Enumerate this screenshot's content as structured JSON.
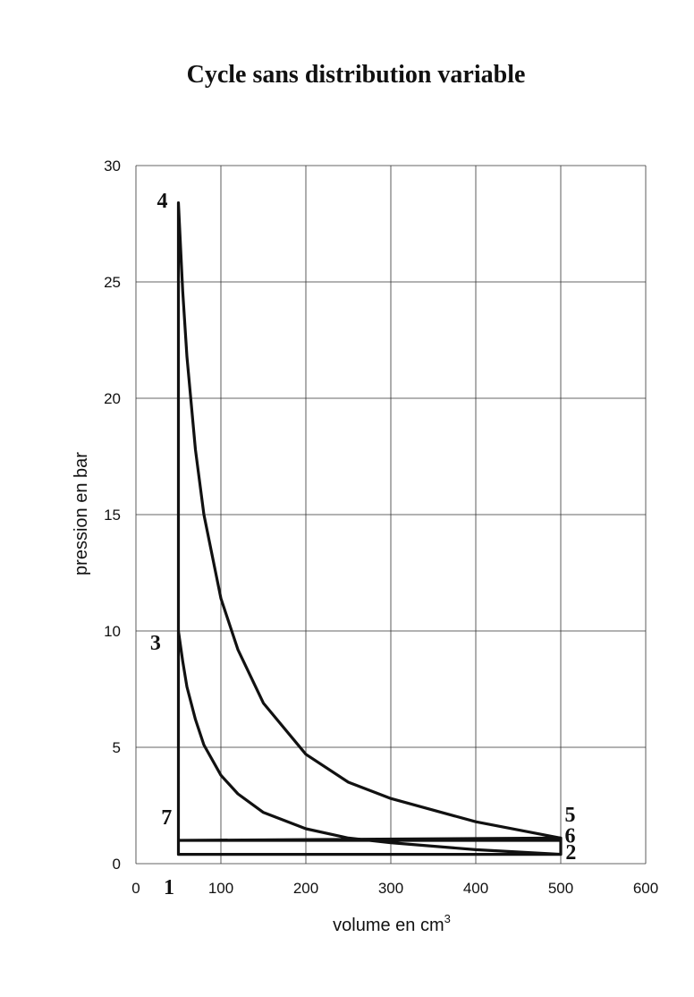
{
  "chart_data": {
    "type": "line",
    "title": "Cycle sans distribution variable",
    "xlabel": "volume en cm",
    "xlabel_superscript": "3",
    "ylabel": "pression en bar",
    "xlim": [
      0,
      600
    ],
    "ylim": [
      0,
      30
    ],
    "x_ticks": [
      "0",
      "100",
      "200",
      "300",
      "400",
      "500",
      "600"
    ],
    "y_ticks": [
      "0",
      "5",
      "10",
      "15",
      "20",
      "25",
      "30"
    ],
    "grid": true,
    "legend": "none",
    "series": [
      {
        "x": [
          50,
          500,
          500,
          50,
          50,
          55,
          60,
          70,
          80,
          100,
          120,
          150,
          200,
          250,
          300,
          400,
          500,
          500,
          50,
          50,
          55,
          60,
          70,
          80,
          100,
          120,
          150,
          200,
          250,
          300,
          400,
          500
        ],
        "y": [
          1.0,
          1.0,
          0.4,
          0.4,
          10.0,
          8.7,
          7.6,
          6.2,
          5.1,
          3.8,
          3.0,
          2.2,
          1.5,
          1.1,
          0.9,
          0.6,
          0.4,
          1.1,
          1.0,
          28.4,
          24.6,
          21.8,
          17.8,
          15.0,
          11.4,
          9.2,
          6.9,
          4.7,
          3.5,
          2.8,
          1.8,
          1.1
        ]
      }
    ],
    "annotations": [
      {
        "text": "1",
        "x": 39,
        "y": -1.3
      },
      {
        "text": "2",
        "x": 512,
        "y": 0.2
      },
      {
        "text": "3",
        "x": 23,
        "y": 9.2
      },
      {
        "text": "4",
        "x": 31,
        "y": 28.2
      },
      {
        "text": "5",
        "x": 511,
        "y": 1.8
      },
      {
        "text": "6",
        "x": 511,
        "y": 0.9
      },
      {
        "text": "7",
        "x": 36,
        "y": 1.7
      }
    ]
  }
}
